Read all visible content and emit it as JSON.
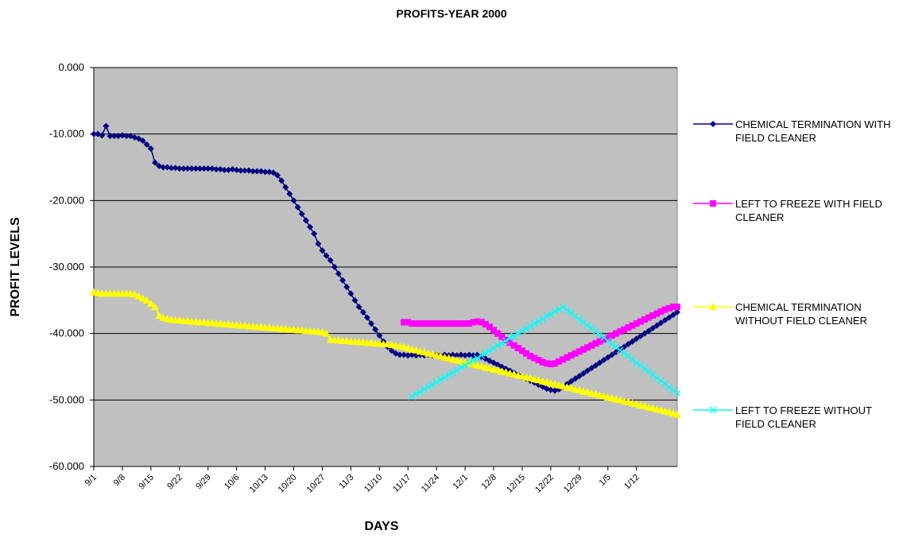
{
  "chart_data": {
    "type": "line",
    "title": "PROFITS-YEAR 2000",
    "x_label": "DAYS",
    "y_label": "PROFIT LEVELS",
    "grid": true,
    "legend": "right",
    "background": "#c0c0c0",
    "ylim": [
      -60,
      0
    ],
    "yticks": [
      {
        "value": 0,
        "label": "0.000"
      },
      {
        "value": -10,
        "label": "-10.000"
      },
      {
        "value": -20,
        "label": "-20.000"
      },
      {
        "value": -30,
        "label": "-30.000"
      },
      {
        "value": -40,
        "label": "-40.000"
      },
      {
        "value": -50,
        "label": "-50.000"
      },
      {
        "value": -60,
        "label": "-60.000"
      }
    ],
    "categories": [
      "9/1",
      null,
      null,
      null,
      null,
      null,
      null,
      "9/8",
      null,
      null,
      null,
      null,
      null,
      null,
      "9/15",
      null,
      null,
      null,
      null,
      null,
      null,
      "9/22",
      null,
      null,
      null,
      null,
      null,
      null,
      "9/29",
      null,
      null,
      null,
      null,
      null,
      null,
      "10/6",
      null,
      null,
      null,
      null,
      null,
      null,
      "10/13",
      null,
      null,
      null,
      null,
      null,
      null,
      "10/20",
      null,
      null,
      null,
      null,
      null,
      null,
      "10/27",
      null,
      null,
      null,
      null,
      null,
      null,
      "11/3",
      null,
      null,
      null,
      null,
      null,
      null,
      "11/10",
      null,
      null,
      null,
      null,
      null,
      null,
      "11/17",
      null,
      null,
      null,
      null,
      null,
      null,
      "11/24",
      null,
      null,
      null,
      null,
      null,
      null,
      "12/1",
      null,
      null,
      null,
      null,
      null,
      null,
      "12/8",
      null,
      null,
      null,
      null,
      null,
      null,
      "12/15",
      null,
      null,
      null,
      null,
      null,
      null,
      "12/22",
      null,
      null,
      null,
      null,
      null,
      null,
      "12/29",
      null,
      null,
      null,
      null,
      null,
      null,
      "1/5",
      null,
      null,
      null,
      null,
      null,
      null,
      "1/12",
      null,
      null,
      null,
      null,
      null,
      null,
      null,
      null,
      null,
      null
    ],
    "series": [
      {
        "name": "CHEMICAL  TERMINATION WITH FIELD CLEANER",
        "color": "#000080",
        "marker": "diamond",
        "values": [
          -10,
          -10,
          -10.2,
          -8.8,
          -10.3,
          -10.3,
          -10.3,
          -10.2,
          -10.3,
          -10.3,
          -10.5,
          -10.7,
          -11,
          -11.6,
          -12.2,
          -14.3,
          -14.8,
          -15,
          -15,
          -15.1,
          -15.1,
          -15.2,
          -15.2,
          -15.2,
          -15.2,
          -15.2,
          -15.2,
          -15.2,
          -15.2,
          -15.2,
          -15.3,
          -15.3,
          -15.4,
          -15.4,
          -15.3,
          -15.4,
          -15.5,
          -15.5,
          -15.5,
          -15.6,
          -15.6,
          -15.6,
          -15.7,
          -15.7,
          -15.8,
          -16.2,
          -17,
          -18,
          -19,
          -20,
          -21,
          -22,
          -23,
          -24,
          -25,
          -26.5,
          -27.5,
          -28.3,
          -29,
          -30,
          -31,
          -32,
          -33,
          -34,
          -35,
          -36,
          -36.8,
          -37.6,
          -38.5,
          -39.4,
          -40.3,
          -41.2,
          -42,
          -42.6,
          -43,
          -43.2,
          -43.2,
          -43.3,
          -43.2,
          -43.3,
          -43.2,
          -43.3,
          -43.2,
          -43.3,
          -43.2,
          -43.3,
          -43.2,
          -43.3,
          -43.2,
          -43.3,
          -43.2,
          -43.3,
          -43.2,
          -43.3,
          -43.2,
          -43.5,
          -43.8,
          -44.1,
          -44.4,
          -44.7,
          -45,
          -45.3,
          -45.6,
          -45.9,
          -46.2,
          -46.5,
          -46.8,
          -47.1,
          -47.4,
          -47.7,
          -48,
          -48.3,
          -48.5,
          -48.6,
          -48.4,
          -48,
          -47.6,
          -47.2,
          -46.8,
          -46.4,
          -46,
          -45.6,
          -45.2,
          -44.8,
          -44.4,
          -44,
          -43.6,
          -43.2,
          -42.8,
          -42.4,
          -42,
          -41.6,
          -41.2,
          -40.8,
          -40.4,
          -40,
          -39.6,
          -39.2,
          -38.8,
          -38.4,
          -38,
          -37.6,
          -37.2,
          -36.8
        ]
      },
      {
        "name": "LEFT TO FREEZE WITH FIELD CLEANER",
        "color": "#ff00ff",
        "marker": "square",
        "values": [
          null,
          null,
          null,
          null,
          null,
          null,
          null,
          null,
          null,
          null,
          null,
          null,
          null,
          null,
          null,
          null,
          null,
          null,
          null,
          null,
          null,
          null,
          null,
          null,
          null,
          null,
          null,
          null,
          null,
          null,
          null,
          null,
          null,
          null,
          null,
          null,
          null,
          null,
          null,
          null,
          null,
          null,
          null,
          null,
          null,
          null,
          null,
          null,
          null,
          null,
          null,
          null,
          null,
          null,
          null,
          null,
          null,
          null,
          null,
          null,
          null,
          null,
          null,
          null,
          null,
          null,
          null,
          null,
          null,
          null,
          null,
          null,
          null,
          null,
          null,
          null,
          -38.3,
          -38.3,
          -38.5,
          -38.5,
          -38.5,
          -38.5,
          -38.5,
          -38.5,
          -38.5,
          -38.5,
          -38.5,
          -38.5,
          -38.5,
          -38.5,
          -38.5,
          -38.5,
          -38.5,
          -38.3,
          -38.2,
          -38.3,
          -38.6,
          -39,
          -39.5,
          -40,
          -40.5,
          -41,
          -41.4,
          -41.8,
          -42.2,
          -42.6,
          -43,
          -43.4,
          -43.7,
          -44,
          -44.3,
          -44.5,
          -44.6,
          -44.5,
          -44.2,
          -43.9,
          -43.6,
          -43.3,
          -43,
          -42.7,
          -42.4,
          -42.1,
          -41.8,
          -41.5,
          -41.2,
          -40.9,
          -40.6,
          -40.3,
          -40,
          -39.7,
          -39.4,
          -39.1,
          -38.8,
          -38.5,
          -38.2,
          -37.9,
          -37.6,
          -37.3,
          -37,
          -36.7,
          -36.4,
          -36.2,
          -36,
          -36
        ]
      },
      {
        "name": "CHEMICAL  TERMINATION WITHOUT FIELD CLEANER",
        "color": "#ffff00",
        "marker": "triangle",
        "values": [
          -33.8,
          -33.9,
          -34,
          -34,
          -34,
          -34,
          -34,
          -34,
          -34,
          -34,
          -34.1,
          -34.4,
          -34.7,
          -35,
          -35.5,
          -36,
          -37.3,
          -37.6,
          -37.8,
          -37.9,
          -38,
          -38,
          -38.1,
          -38.1,
          -38.2,
          -38.2,
          -38.3,
          -38.3,
          -38.4,
          -38.4,
          -38.5,
          -38.5,
          -38.6,
          -38.6,
          -38.7,
          -38.7,
          -38.8,
          -38.8,
          -38.9,
          -38.9,
          -39,
          -39,
          -39.1,
          -39.1,
          -39.2,
          -39.2,
          -39.3,
          -39.3,
          -39.4,
          -39.4,
          -39.5,
          -39.5,
          -39.6,
          -39.6,
          -39.7,
          -39.7,
          -39.8,
          -40,
          -40.9,
          -41,
          -41,
          -41.1,
          -41.1,
          -41.2,
          -41.2,
          -41.3,
          -41.3,
          -41.4,
          -41.4,
          -41.5,
          -41.5,
          -41.6,
          -41.6,
          -41.7,
          -41.8,
          -41.9,
          -42,
          -42.2,
          -42.4,
          -42.5,
          -42.7,
          -42.8,
          -43,
          -43.1,
          -43.3,
          -43.4,
          -43.6,
          -43.7,
          -43.9,
          -44,
          -44.2,
          -44.3,
          -44.5,
          -44.6,
          -44.8,
          -44.9,
          -45.1,
          -45.2,
          -45.4,
          -45.5,
          -45.7,
          -45.8,
          -46,
          -46.1,
          -46.3,
          -46.4,
          -46.6,
          -46.7,
          -46.9,
          -47,
          -47.2,
          -47.3,
          -47.5,
          -47.6,
          -47.8,
          -47.9,
          -48.1,
          -48.2,
          -48.4,
          -48.5,
          -48.7,
          -48.8,
          -49,
          -49.1,
          -49.3,
          -49.4,
          -49.6,
          -49.7,
          -49.9,
          -50,
          -50.2,
          -50.3,
          -50.5,
          -50.6,
          -50.8,
          -50.9,
          -51.1,
          -51.2,
          -51.4,
          -51.5,
          -51.7,
          -51.8,
          -52,
          -52.2
        ]
      },
      {
        "name": "LEFT TO FREEZE WITHOUT FIELD CLEANER",
        "color": "#00ffff",
        "marker": "x",
        "values": [
          null,
          null,
          null,
          null,
          null,
          null,
          null,
          null,
          null,
          null,
          null,
          null,
          null,
          null,
          null,
          null,
          null,
          null,
          null,
          null,
          null,
          null,
          null,
          null,
          null,
          null,
          null,
          null,
          null,
          null,
          null,
          null,
          null,
          null,
          null,
          null,
          null,
          null,
          null,
          null,
          null,
          null,
          null,
          null,
          null,
          null,
          null,
          null,
          null,
          null,
          null,
          null,
          null,
          null,
          null,
          null,
          null,
          null,
          null,
          null,
          null,
          null,
          null,
          null,
          null,
          null,
          null,
          null,
          null,
          null,
          null,
          null,
          null,
          null,
          null,
          null,
          null,
          null,
          -49.5,
          -49.1,
          -48.8,
          -48.4,
          -48,
          -47.7,
          -47.3,
          -46.9,
          -46.6,
          -46.2,
          -45.9,
          -45.5,
          -45.1,
          -44.8,
          -44.4,
          -44,
          -43.7,
          -43.3,
          -42.9,
          -42.6,
          -42.2,
          -41.8,
          -41.5,
          -41.1,
          -40.7,
          -40.4,
          -40,
          -39.6,
          -39.3,
          -38.9,
          -38.5,
          -38.2,
          -37.8,
          -37.4,
          -37.1,
          -36.7,
          -36.4,
          -36,
          -36.5,
          -36.9,
          -37.4,
          -37.9,
          -38.3,
          -38.8,
          -39.2,
          -39.7,
          -40.2,
          -40.6,
          -41.1,
          -41.6,
          -42,
          -42.5,
          -43,
          -43.4,
          -43.9,
          -44.4,
          -44.8,
          -45.3,
          -45.7,
          -46.2,
          -46.7,
          -47.1,
          -47.6,
          -48.1,
          -48.5,
          -49
        ]
      }
    ]
  }
}
